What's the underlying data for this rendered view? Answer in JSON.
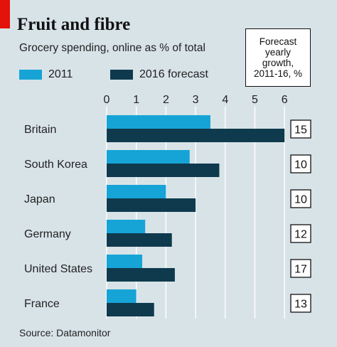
{
  "chart_data": {
    "type": "bar",
    "orientation": "horizontal",
    "title": "Fruit and fibre",
    "subtitle": "Grocery spending, online as % of total",
    "categories": [
      "Britain",
      "South Korea",
      "Japan",
      "Germany",
      "United States",
      "France"
    ],
    "series": [
      {
        "name": "2011",
        "values": [
          3.5,
          2.8,
          2.0,
          1.3,
          1.2,
          1.0
        ],
        "color": "#16a4d6"
      },
      {
        "name": "2016 forecast",
        "values": [
          6.0,
          3.8,
          3.0,
          2.2,
          2.3,
          1.6
        ],
        "color": "#0f3a4d"
      }
    ],
    "xlim": [
      0,
      6
    ],
    "xticks": [
      "0",
      "1",
      "2",
      "3",
      "4",
      "5",
      "6"
    ],
    "grid": "vertical",
    "legend": "top",
    "forecast_growth": {
      "header": "Forecast\nyearly\ngrowth,\n2011-16, %",
      "values": [
        "15",
        "10",
        "10",
        "12",
        "17",
        "13"
      ]
    },
    "source": "Source: Datamonitor",
    "colors": {
      "background": "#d8e3e8",
      "accent_red": "#e3120b",
      "gridline": "#ffffff"
    }
  }
}
